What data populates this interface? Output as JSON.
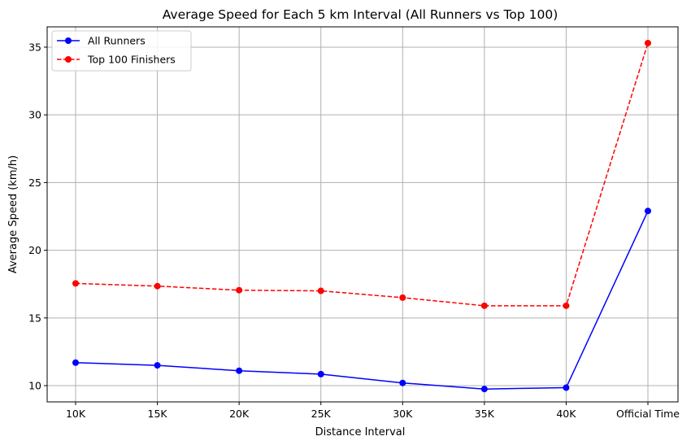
{
  "chart_data": {
    "type": "line",
    "title": "Average Speed for Each 5 km Interval (All Runners vs Top 100)",
    "xlabel": "Distance Interval",
    "ylabel": "Average Speed (km/h)",
    "categories": [
      "10K",
      "15K",
      "20K",
      "25K",
      "30K",
      "35K",
      "40K",
      "Official Time"
    ],
    "ylim": [
      8.8,
      36.5
    ],
    "yticks": [
      10,
      15,
      20,
      25,
      30,
      35
    ],
    "grid": true,
    "legend_position": "top-left",
    "series": [
      {
        "name": "All Runners",
        "color": "#0000ff",
        "linestyle": "solid",
        "marker": "circle",
        "values": [
          11.7,
          11.5,
          11.1,
          10.85,
          10.2,
          9.75,
          9.85,
          22.9
        ]
      },
      {
        "name": "Top 100 Finishers",
        "color": "#ff0000",
        "linestyle": "dashed",
        "marker": "circle",
        "values": [
          17.55,
          17.35,
          17.05,
          17.0,
          16.5,
          15.9,
          15.9,
          35.3
        ]
      }
    ]
  }
}
